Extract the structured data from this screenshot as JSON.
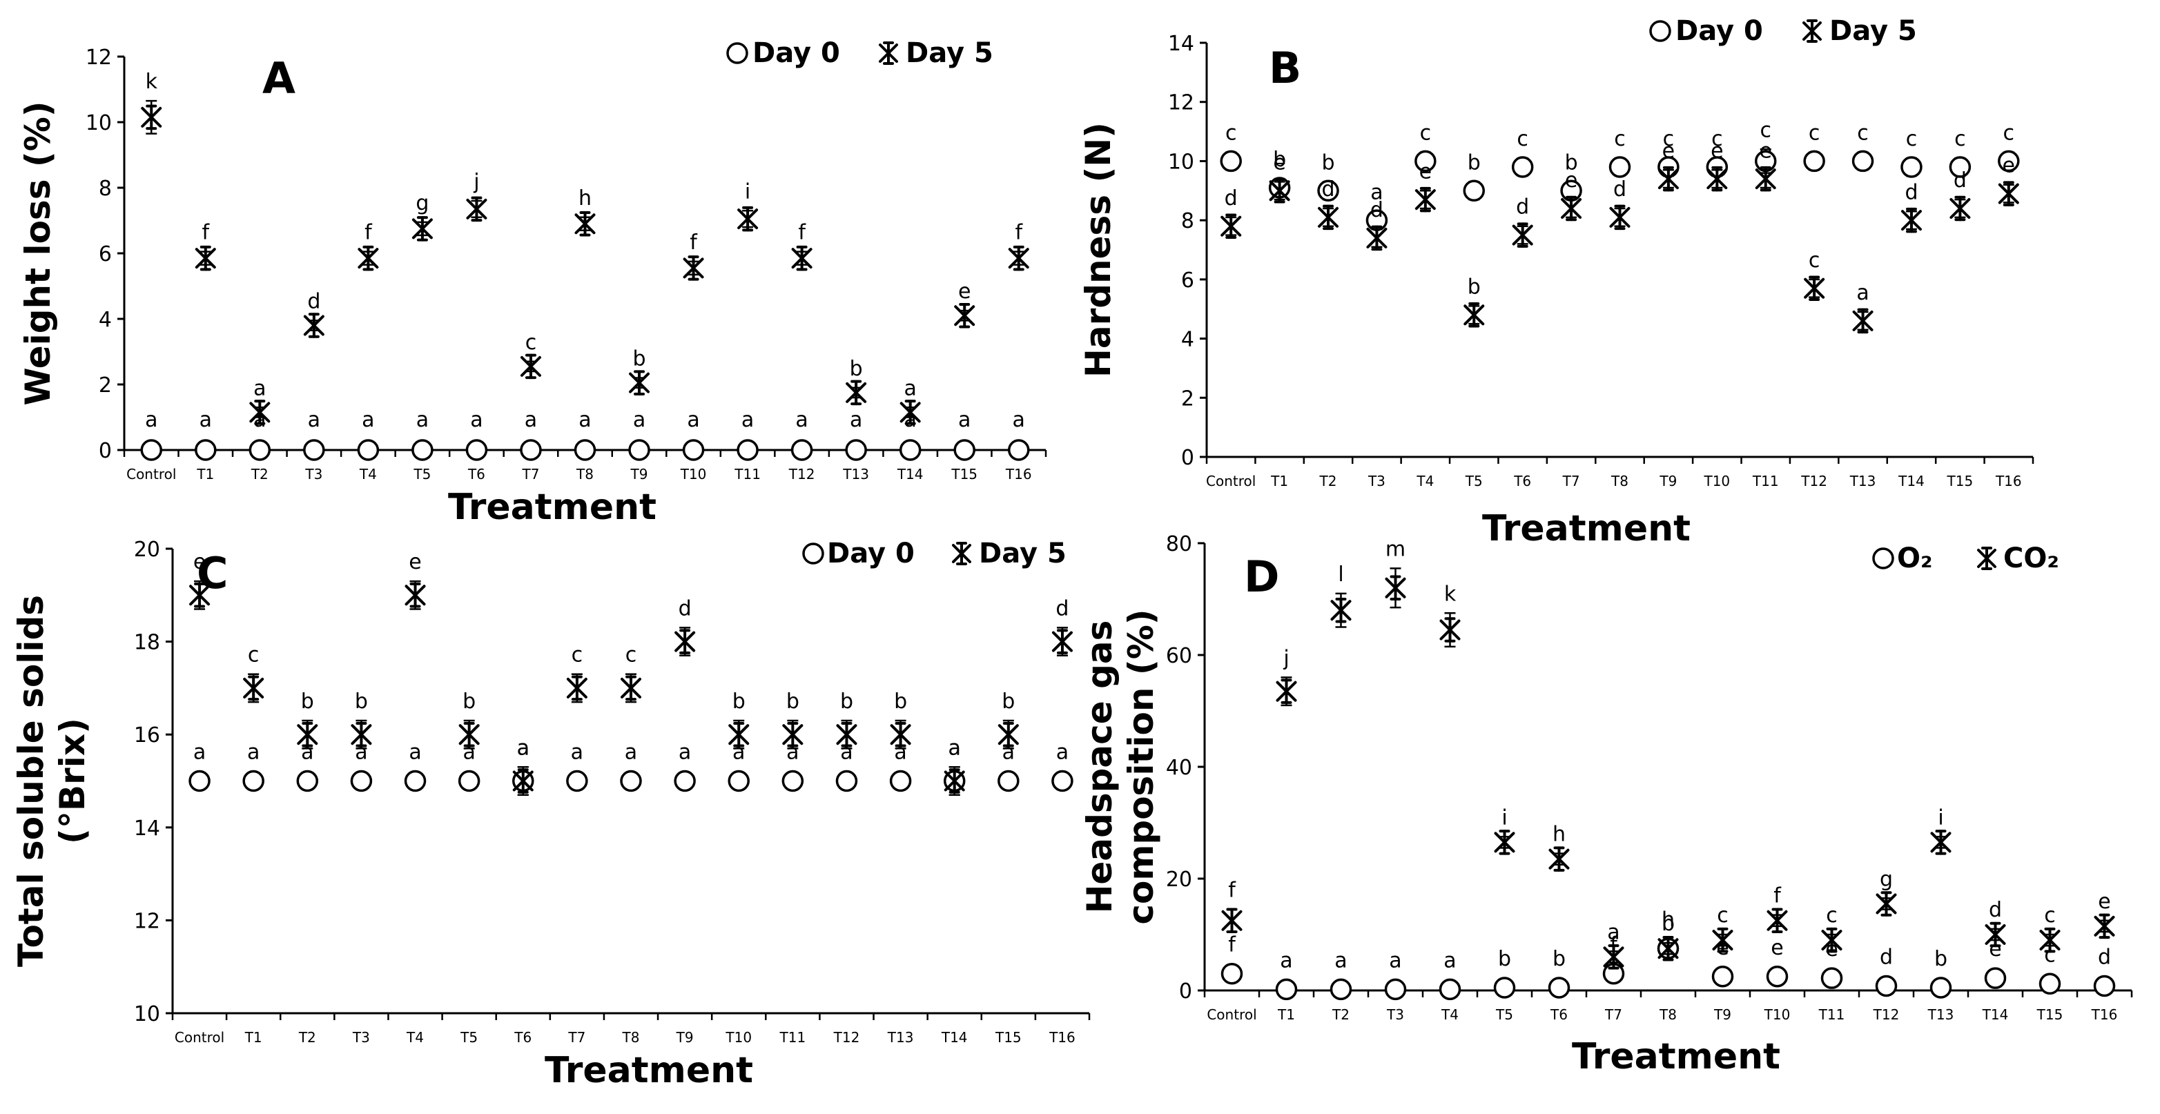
{
  "chart_data": [
    {
      "id": "A",
      "type": "scatter",
      "panel_label": "A",
      "xlabel": "Treatment",
      "ylabel": "Weight loss (%)",
      "ylim": [
        0,
        12
      ],
      "yticks": [
        0,
        2,
        4,
        6,
        8,
        10,
        12
      ],
      "legend_position": "top-right",
      "categories": [
        "Control",
        "T1",
        "T2",
        "T3",
        "T4",
        "T5",
        "T6",
        "T7",
        "T8",
        "T9",
        "T10",
        "T11",
        "T12",
        "T13",
        "T14",
        "T15",
        "T16"
      ],
      "series": [
        {
          "name": "Day 0",
          "marker": "circle",
          "values": [
            0,
            0,
            0,
            0,
            0,
            0,
            0,
            0,
            0,
            0,
            0,
            0,
            0,
            0,
            0,
            0,
            0
          ],
          "errors": [
            0,
            0,
            0,
            0,
            0,
            0,
            0,
            0,
            0,
            0,
            0,
            0,
            0,
            0,
            0,
            0,
            0
          ],
          "letters": [
            "a",
            "a",
            "a",
            "a",
            "a",
            "a",
            "a",
            "a",
            "a",
            "a",
            "a",
            "a",
            "a",
            "a",
            "a",
            "a",
            "a"
          ]
        },
        {
          "name": "Day 5",
          "marker": "star",
          "values": [
            10.15,
            5.85,
            1.15,
            3.8,
            5.85,
            6.75,
            7.35,
            2.55,
            6.9,
            2.05,
            5.55,
            7.05,
            5.85,
            1.75,
            1.15,
            4.1,
            5.85
          ],
          "errors": [
            0.5,
            0.2,
            0.15,
            0.15,
            0.2,
            0.2,
            0.25,
            0.15,
            0.2,
            0.15,
            0.2,
            0.25,
            0.2,
            0.15,
            0.15,
            0.15,
            0.2
          ],
          "letters": [
            "k",
            "f",
            "a",
            "d",
            "f",
            "g",
            "j",
            "c",
            "h",
            "b",
            "f",
            "i",
            "f",
            "b",
            "a",
            "e",
            "f"
          ]
        }
      ]
    },
    {
      "id": "B",
      "type": "scatter",
      "panel_label": "B",
      "xlabel": "Treatment",
      "ylabel": "Hardness (N)",
      "ylim": [
        0,
        14
      ],
      "yticks": [
        0,
        2,
        4,
        6,
        8,
        10,
        12,
        14
      ],
      "legend_position": "top-center",
      "categories": [
        "Control",
        "T1",
        "T2",
        "T3",
        "T4",
        "T5",
        "T6",
        "T7",
        "T8",
        "T9",
        "T10",
        "T11",
        "T12",
        "T13",
        "T14",
        "T15",
        "T16"
      ],
      "series": [
        {
          "name": "Day 0",
          "marker": "circle",
          "values": [
            10,
            9.1,
            9,
            8,
            10,
            9,
            9.8,
            9,
            9.8,
            9.8,
            9.8,
            10,
            10,
            10,
            9.8,
            9.8,
            10
          ],
          "errors": [
            0.3,
            0.3,
            0.3,
            0.3,
            0.3,
            0.3,
            0.3,
            0.3,
            0.3,
            0.3,
            0.3,
            0.4,
            0.3,
            0.3,
            0.3,
            0.3,
            0.3
          ],
          "letters": [
            "c",
            "b",
            "b",
            "a",
            "c",
            "b",
            "c",
            "b",
            "c",
            "c",
            "c",
            "c",
            "c",
            "c",
            "c",
            "c",
            "c"
          ]
        },
        {
          "name": "Day 5",
          "marker": "star",
          "values": [
            7.8,
            9,
            8.1,
            7.4,
            8.7,
            4.8,
            7.5,
            8.4,
            8.1,
            9.4,
            9.4,
            9.4,
            5.7,
            4.6,
            8,
            8.4,
            8.9
          ],
          "errors": [
            0.3,
            0.3,
            0.3,
            0.3,
            0.3,
            0.3,
            0.3,
            0.3,
            0.3,
            0.3,
            0.3,
            0.3,
            0.3,
            0.3,
            0.3,
            0.3,
            0.3
          ],
          "letters": [
            "d",
            "e",
            "d",
            "d",
            "e",
            "b",
            "d",
            "e",
            "d",
            "e",
            "e",
            "e",
            "c",
            "a",
            "d",
            "d",
            "e"
          ]
        }
      ]
    },
    {
      "id": "C",
      "type": "scatter",
      "panel_label": "C",
      "xlabel": "Treatment",
      "ylabel_lines": [
        "Total soluble solids",
        "(°Brix)"
      ],
      "ylim": [
        10,
        20
      ],
      "yticks": [
        10,
        12,
        14,
        16,
        18,
        20
      ],
      "legend_position": "top-right",
      "categories": [
        "Control",
        "T1",
        "T2",
        "T3",
        "T4",
        "T5",
        "T6",
        "T7",
        "T8",
        "T9",
        "T10",
        "T11",
        "T12",
        "T13",
        "T14",
        "T15",
        "T16"
      ],
      "series": [
        {
          "name": "Day 0",
          "marker": "circle",
          "values": [
            15,
            15,
            15,
            15,
            15,
            15,
            15,
            15,
            15,
            15,
            15,
            15,
            15,
            15,
            15,
            15,
            15
          ],
          "errors": [
            0,
            0,
            0,
            0,
            0,
            0,
            0.3,
            0,
            0,
            0,
            0,
            0,
            0,
            0,
            0.3,
            0,
            0
          ],
          "letters": [
            "a",
            "a",
            "a",
            "a",
            "a",
            "a",
            "a",
            "a",
            "a",
            "a",
            "a",
            "a",
            "a",
            "a",
            "a",
            "a",
            "a"
          ]
        },
        {
          "name": "Day 5",
          "marker": "star",
          "values": [
            19,
            17,
            16,
            16,
            19,
            16,
            15,
            17,
            17,
            18,
            16,
            16,
            16,
            16,
            15,
            16,
            18
          ],
          "errors": [
            0.3,
            0.3,
            0.3,
            0.3,
            0.3,
            0.3,
            0.3,
            0.3,
            0.3,
            0.3,
            0.3,
            0.3,
            0.3,
            0.3,
            0.3,
            0.3,
            0.3
          ],
          "letters": [
            "e",
            "c",
            "b",
            "b",
            "e",
            "b",
            "a",
            "c",
            "c",
            "d",
            "b",
            "b",
            "b",
            "b",
            "a",
            "b",
            "d"
          ]
        }
      ]
    },
    {
      "id": "D",
      "type": "scatter",
      "panel_label": "D",
      "xlabel": "Treatment",
      "ylabel_lines": [
        "Headspace gas",
        "composition (%)"
      ],
      "ylim": [
        0,
        80
      ],
      "yticks": [
        0,
        20,
        40,
        60,
        80
      ],
      "legend_position": "top-right",
      "categories": [
        "Control",
        "T1",
        "T2",
        "T3",
        "T4",
        "T5",
        "T6",
        "T7",
        "T8",
        "T9",
        "T10",
        "T11",
        "T12",
        "T13",
        "T14",
        "T15",
        "T16"
      ],
      "series": [
        {
          "name": "O₂",
          "marker": "circle",
          "values": [
            3,
            0.2,
            0.2,
            0.2,
            0.2,
            0.5,
            0.5,
            3,
            7.5,
            2.5,
            2.5,
            2.2,
            0.8,
            0.5,
            2.2,
            1.2,
            0.8
          ],
          "errors": [
            0,
            0,
            0,
            0,
            0,
            0,
            0,
            0,
            0,
            0,
            0,
            0,
            0,
            0,
            0,
            0,
            0
          ],
          "letters": [
            "f",
            "a",
            "a",
            "a",
            "a",
            "b",
            "b",
            "f",
            "h",
            "e",
            "e",
            "e",
            "d",
            "b",
            "e",
            "c",
            "d"
          ]
        },
        {
          "name": "CO₂",
          "marker": "star",
          "values": [
            12.5,
            53.5,
            68,
            72,
            64.5,
            26.5,
            23.5,
            6,
            7.5,
            9,
            12.5,
            9,
            15.5,
            26.5,
            10,
            9,
            11.5
          ],
          "errors": [
            2,
            2.5,
            3,
            3.5,
            3,
            1,
            1,
            1,
            1,
            1,
            1,
            1,
            1,
            1,
            1,
            1,
            1
          ],
          "letters": [
            "f",
            "j",
            "l",
            "m",
            "k",
            "i",
            "h",
            "a",
            "b",
            "c",
            "f",
            "c",
            "g",
            "i",
            "d",
            "c",
            "e"
          ]
        }
      ]
    }
  ]
}
